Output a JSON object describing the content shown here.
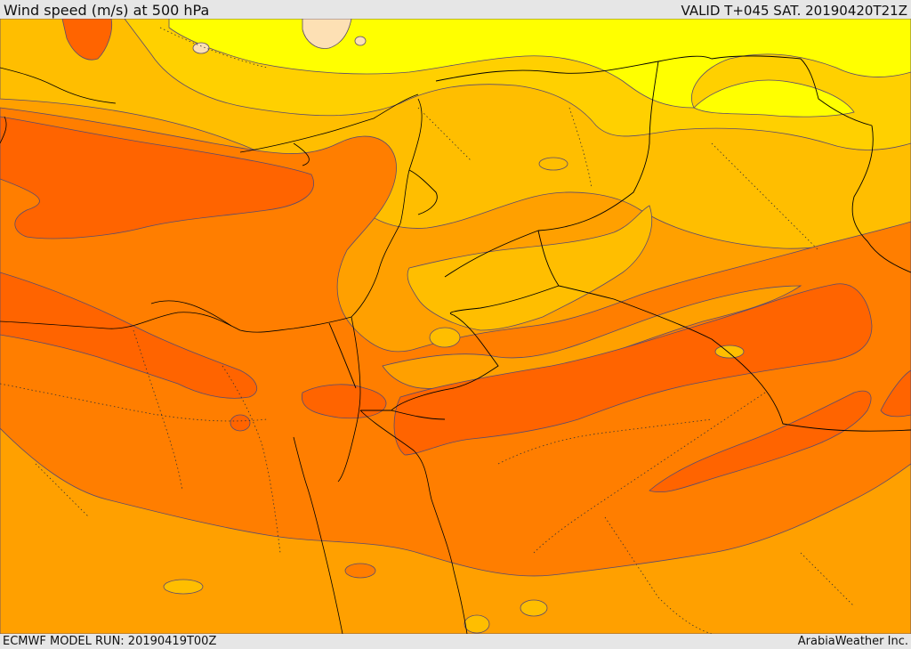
{
  "header": {
    "title": "Wind speed (m/s) at 500 hPa",
    "valid": "VALID T+045 SAT. 20190420T21Z"
  },
  "footer": {
    "model_run": "ECMWF MODEL RUN: 20190419T00Z",
    "brand": "ArabiaWeather Inc."
  },
  "colors": {
    "band_lightest": "#fde0b4",
    "band_yellow": "#ffff00",
    "band_yellow_orange": "#ffd000",
    "band_gold": "#ffbe00",
    "band_orange": "#ffa000",
    "band_dark_orange": "#ff7e00",
    "band_red_orange": "#ff6400",
    "contour_line": "#5a4a6e",
    "border_line": "#000000"
  }
}
